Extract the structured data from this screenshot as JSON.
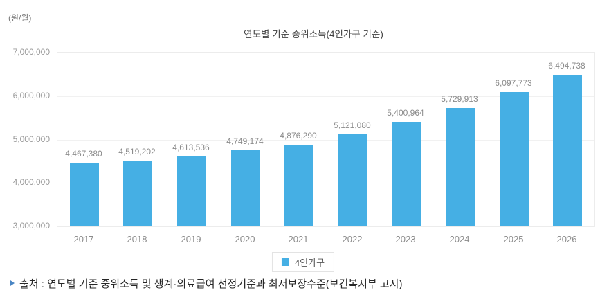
{
  "chart_data": {
    "type": "bar",
    "title": "연도별 기준 중위소득(4인가구 기준)",
    "unit_label": "(원/월)",
    "categories": [
      "2017",
      "2018",
      "2019",
      "2020",
      "2021",
      "2022",
      "2023",
      "2024",
      "2025",
      "2026"
    ],
    "series": [
      {
        "name": "4인가구",
        "color": "#45afe4",
        "values": [
          4467380,
          4519202,
          4613536,
          4749174,
          4876290,
          5121080,
          5400964,
          5729913,
          6097773,
          6494738
        ],
        "value_labels": [
          "4,467,380",
          "4,519,202",
          "4,613,536",
          "4,749,174",
          "4,876,290",
          "5,121,080",
          "5,400,964",
          "5,729,913",
          "6,097,773",
          "6,494,738"
        ]
      }
    ],
    "ylim": [
      3000000,
      7000000
    ],
    "ytick_step": 1000000,
    "ytick_labels": [
      "7,000,000",
      "6,000,000",
      "5,000,000",
      "4,000,000",
      "3,000,000"
    ],
    "grid": true,
    "legend": {
      "position": "bottom",
      "labels": [
        "4인가구"
      ]
    }
  },
  "source": {
    "text": "출처 : 연도별 기준 중위소득 및 생계·의료급여 선정기준과 최저보장수준(보건복지부 고시)",
    "bullet_color": "#4a86c4"
  }
}
